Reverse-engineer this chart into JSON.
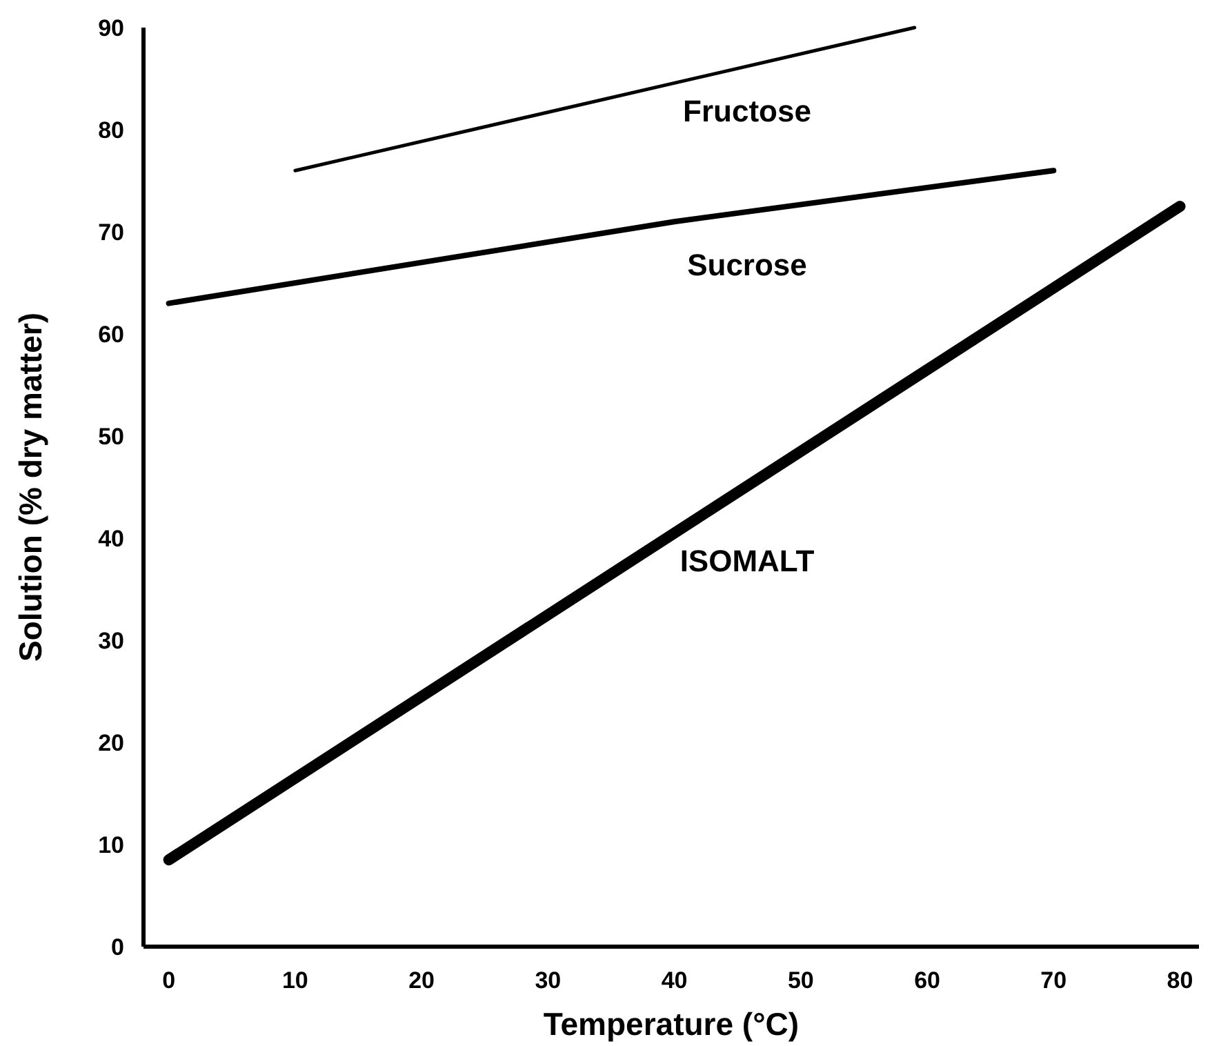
{
  "chart_data": {
    "type": "line",
    "xlabel": "Temperature (°C)",
    "ylabel": "Solution (% dry matter)",
    "xlim": [
      -2,
      81.5
    ],
    "ylim": [
      0,
      90
    ],
    "xticks": [
      0,
      10,
      20,
      30,
      40,
      50,
      60,
      70,
      80
    ],
    "yticks": [
      0,
      10,
      20,
      30,
      40,
      50,
      60,
      70,
      80,
      90
    ],
    "grid": false,
    "marker": "none",
    "line_style": "solid",
    "series": [
      {
        "name": "Fructose",
        "color": "#000000",
        "x": [
          10,
          59
        ],
        "values": [
          76,
          90
        ]
      },
      {
        "name": "Sucrose",
        "color": "#000000",
        "x": [
          0,
          40,
          70
        ],
        "values": [
          63,
          71,
          76
        ]
      },
      {
        "name": "ISOMALT",
        "color": "#000000",
        "x": [
          0,
          80
        ],
        "values": [
          8.5,
          72.5
        ]
      }
    ]
  }
}
